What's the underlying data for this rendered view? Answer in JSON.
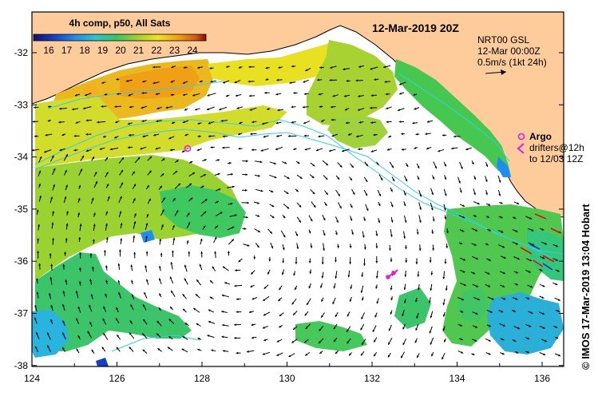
{
  "map": {
    "composite_label": "4h comp, p50, All Sats",
    "date_title": "12-Mar-2019 20Z",
    "colorbar_ticks": [
      "16",
      "17",
      "18",
      "19",
      "20",
      "21",
      "22",
      "23",
      "24"
    ],
    "lon_ticks": [
      "124",
      "126",
      "128",
      "130",
      "132",
      "134",
      "136"
    ],
    "lat_ticks": [
      "-32",
      "-33",
      "-34",
      "-35",
      "-36",
      "-37",
      "-38"
    ],
    "velocity_legend": {
      "line1": "NRT00 GSL",
      "line2": "12-Mar 00:00Z",
      "line3": "0.5m/s (1kt 24h)"
    },
    "argo_label": "Argo",
    "drifters_line1": "drifters@12h",
    "drifters_line2": "to 12/03 12Z",
    "credit": "© IMOS 17-Mar-2019 13:04 Hobart",
    "colors": {
      "land": "#fdcc9a",
      "argo": "#e020e0",
      "contour": "#30d0e8",
      "frame": "#000000"
    },
    "sst_colormap": [
      "#10106e",
      "#1440c8",
      "#1e8cf0",
      "#28c8d2",
      "#32c864",
      "#9ad232",
      "#ebe61e",
      "#f0a014",
      "#d25a14",
      "#8c0a0a"
    ]
  }
}
